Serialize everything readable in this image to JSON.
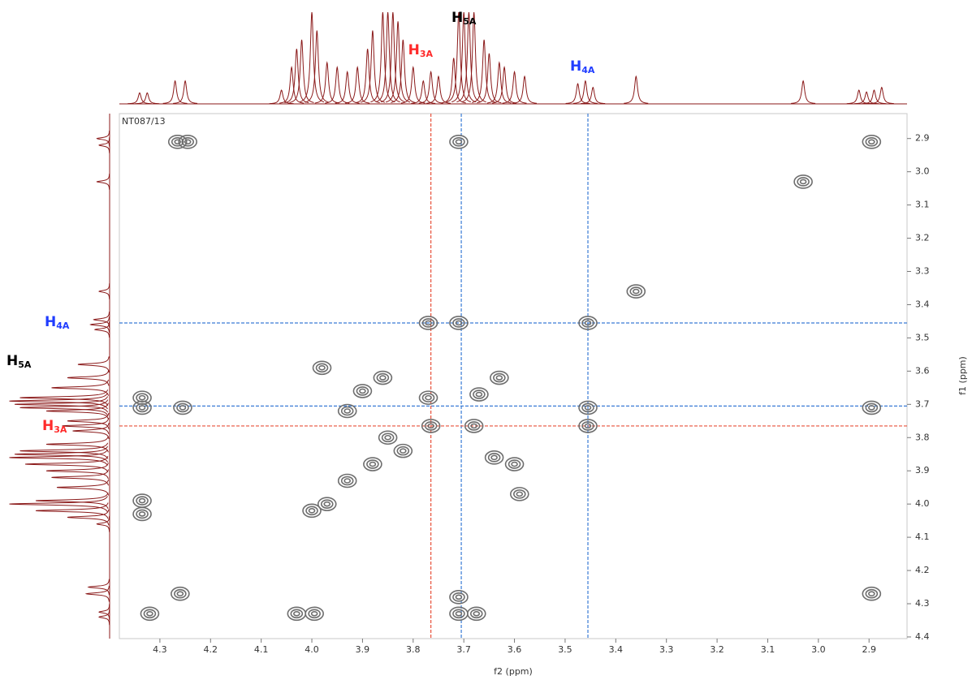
{
  "chart_data": {
    "type": "contour",
    "sample_label": "NT087/13",
    "x_label": "f2 (ppm)",
    "y_label": "f1 (ppm)",
    "xlim": [
      4.38,
      2.825
    ],
    "ylim": [
      2.825,
      4.405
    ],
    "xticks": [
      4.3,
      4.2,
      4.1,
      {
        "value": 4.0,
        "label": "4.0"
      },
      3.9,
      3.8,
      3.7,
      3.6,
      3.5,
      3.4,
      3.3,
      3.2,
      3.1,
      {
        "value": 3.0,
        "label": "3.0"
      },
      2.9
    ],
    "yticks": [
      2.9,
      {
        "value": 3.0,
        "label": "3.0"
      },
      3.1,
      3.2,
      3.3,
      3.4,
      3.5,
      3.6,
      3.7,
      3.8,
      3.9,
      {
        "value": 4.0,
        "label": "4.0"
      },
      4.1,
      4.2,
      4.3,
      4.4
    ],
    "contour_color": "#6e6e6e",
    "projection_color": "#8b1a1a",
    "peaks": {
      "x": [
        4.265,
        4.245,
        3.71,
        2.895,
        3.03,
        3.36,
        3.77,
        3.71,
        3.455,
        3.98,
        3.9,
        3.86,
        3.67,
        3.63,
        4.335,
        4.335,
        4.255,
        3.77,
        3.455,
        2.895,
        3.765,
        3.68,
        3.455,
        3.64,
        3.6,
        3.59,
        3.93,
        3.88,
        3.97,
        4.0,
        3.82,
        4.335,
        4.335,
        4.26,
        2.895,
        4.32,
        4.03,
        3.995,
        3.71,
        3.675,
        3.71,
        3.93,
        3.85
      ],
      "y": [
        2.91,
        2.91,
        2.91,
        2.91,
        3.03,
        3.36,
        3.455,
        3.455,
        3.455,
        3.59,
        3.66,
        3.62,
        3.67,
        3.62,
        3.68,
        3.71,
        3.71,
        3.68,
        3.71,
        3.71,
        3.765,
        3.765,
        3.765,
        3.86,
        3.88,
        3.97,
        3.93,
        3.88,
        4.0,
        4.02,
        3.84,
        3.99,
        4.03,
        4.27,
        4.27,
        4.33,
        4.33,
        4.33,
        4.33,
        4.33,
        4.28,
        3.72,
        3.8
      ]
    },
    "f2_projection": {
      "x": [
        4.34,
        4.325,
        4.27,
        4.25,
        4.06,
        4.04,
        4.03,
        4.02,
        4.0,
        3.99,
        3.97,
        3.95,
        3.93,
        3.91,
        3.89,
        3.88,
        3.86,
        3.85,
        3.84,
        3.83,
        3.82,
        3.8,
        3.78,
        3.765,
        3.75,
        3.72,
        3.71,
        3.7,
        3.69,
        3.68,
        3.66,
        3.65,
        3.63,
        3.62,
        3.6,
        3.58,
        3.475,
        3.46,
        3.445,
        3.36,
        3.03,
        2.92,
        2.905,
        2.89,
        2.875
      ],
      "values": [
        12,
        12,
        25,
        25,
        15,
        40,
        60,
        70,
        100,
        80,
        45,
        40,
        35,
        40,
        60,
        80,
        100,
        100,
        100,
        90,
        70,
        40,
        25,
        35,
        30,
        50,
        100,
        100,
        100,
        100,
        70,
        55,
        45,
        40,
        35,
        30,
        22,
        25,
        18,
        30,
        25,
        15,
        13,
        15,
        18
      ]
    },
    "f1_projection": {
      "x": [
        2.9,
        2.92,
        3.03,
        3.36,
        3.445,
        3.46,
        3.475,
        3.58,
        3.62,
        3.65,
        3.68,
        3.69,
        3.7,
        3.71,
        3.72,
        3.75,
        3.765,
        3.78,
        3.82,
        3.84,
        3.85,
        3.86,
        3.88,
        3.9,
        3.92,
        3.95,
        3.99,
        4.0,
        4.02,
        4.04,
        4.06,
        4.25,
        4.27,
        4.325,
        4.34
      ],
      "values": [
        12,
        10,
        12,
        10,
        15,
        18,
        14,
        30,
        40,
        55,
        85,
        95,
        90,
        85,
        60,
        40,
        45,
        35,
        60,
        85,
        90,
        95,
        80,
        60,
        55,
        50,
        70,
        95,
        70,
        40,
        12,
        20,
        22,
        10,
        10
      ]
    },
    "annotations": [
      {
        "text": "H",
        "sub": "5A",
        "shift": 3.705,
        "color": "#000000",
        "line_color": "#3a7bd5"
      },
      {
        "text": "H",
        "sub": "3A",
        "shift": 3.765,
        "color": "#ff2a2a",
        "line_color": "#e8503a"
      },
      {
        "text": "H",
        "sub": "4A",
        "shift": 3.455,
        "color": "#1f3cff",
        "line_color": "#3a7bd5"
      }
    ]
  }
}
